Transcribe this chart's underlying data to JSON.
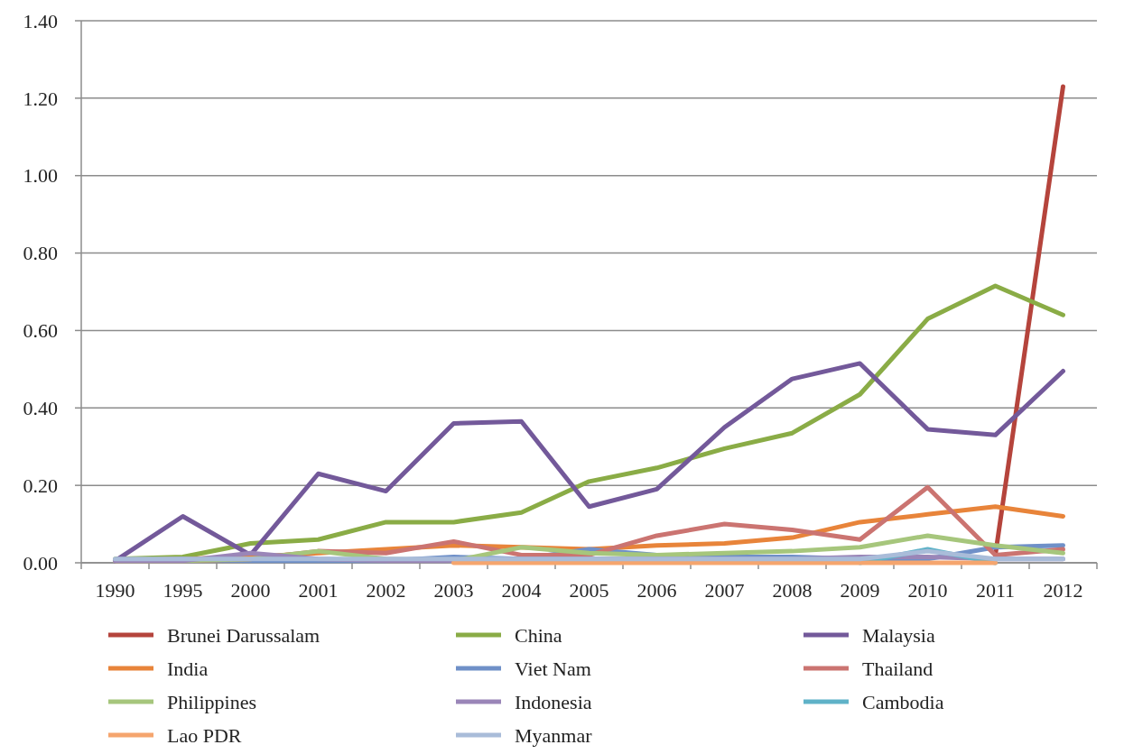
{
  "chart_data": {
    "type": "line",
    "categories": [
      "1990",
      "1995",
      "2000",
      "2001",
      "2002",
      "2003",
      "2004",
      "2005",
      "2006",
      "2007",
      "2008",
      "2009",
      "2010",
      "2011",
      "2012"
    ],
    "ylim": [
      0,
      1.4
    ],
    "yticks": [
      {
        "value": 0,
        "label": "0.00"
      },
      {
        "value": 0.2,
        "label": "0.20"
      },
      {
        "value": 0.4,
        "label": "0.40"
      },
      {
        "value": 0.6,
        "label": "0.60"
      },
      {
        "value": 0.8,
        "label": "0.80"
      },
      {
        "value": 1,
        "label": "1.00"
      },
      {
        "value": 1.2,
        "label": "1.20"
      },
      {
        "value": 1.4,
        "label": "1.40"
      }
    ],
    "grid": "y",
    "legend": "bottom",
    "marker": "none",
    "line_style": "solid",
    "series": [
      {
        "name": "Brunei Darussalam",
        "color": "#b5443c",
        "values": [
          null,
          null,
          null,
          null,
          null,
          null,
          null,
          null,
          null,
          null,
          null,
          null,
          null,
          0.02,
          1.23
        ]
      },
      {
        "name": "China",
        "color": "#8aac46",
        "values": [
          0.01,
          0.015,
          0.05,
          0.06,
          0.105,
          0.105,
          0.13,
          0.21,
          0.245,
          0.295,
          0.335,
          0.435,
          0.63,
          0.715,
          0.64
        ]
      },
      {
        "name": "Malaysia",
        "color": "#73599a",
        "values": [
          0.005,
          0.12,
          0.02,
          0.23,
          0.185,
          0.36,
          0.365,
          0.145,
          0.19,
          0.35,
          0.475,
          0.515,
          0.345,
          0.33,
          0.495
        ]
      },
      {
        "name": "India",
        "color": "#e8843a",
        "values": [
          0.005,
          0.01,
          0.015,
          0.025,
          0.035,
          0.045,
          0.04,
          0.035,
          0.045,
          0.05,
          0.065,
          0.105,
          0.125,
          0.145,
          0.12
        ]
      },
      {
        "name": "Viet Nam",
        "color": "#6f90c8",
        "values": [
          0.005,
          0.01,
          0.005,
          0.005,
          0.005,
          0.015,
          0.01,
          0.035,
          0.02,
          0.015,
          0.015,
          0.01,
          0.01,
          0.04,
          0.045
        ]
      },
      {
        "name": "Thailand",
        "color": "#cb7471",
        "values": [
          0.005,
          0.005,
          0.01,
          0.03,
          0.025,
          0.055,
          0.02,
          0.02,
          0.07,
          0.1,
          0.085,
          0.06,
          0.195,
          0.02,
          0.035
        ]
      },
      {
        "name": "Philippines",
        "color": "#a6c67c",
        "values": [
          0.005,
          0.005,
          0.01,
          0.03,
          0.01,
          0.005,
          0.04,
          0.025,
          0.02,
          0.025,
          0.03,
          0.04,
          0.07,
          0.045,
          0.025
        ]
      },
      {
        "name": "Indonesia",
        "color": "#9a86b8",
        "values": [
          0.005,
          0.005,
          0.025,
          0.01,
          0.005,
          0.005,
          0.01,
          0.01,
          0.01,
          0.01,
          0.01,
          0.015,
          0.015,
          0.01,
          0.01
        ]
      },
      {
        "name": "Cambodia",
        "color": "#5fb2c8",
        "values": [
          null,
          null,
          null,
          null,
          null,
          null,
          null,
          null,
          null,
          null,
          null,
          0,
          0.035,
          0,
          null
        ]
      },
      {
        "name": "Lao PDR",
        "color": "#f5a56e",
        "values": [
          null,
          null,
          null,
          null,
          null,
          0,
          0,
          0,
          0,
          0,
          0,
          0,
          0,
          0,
          null
        ]
      },
      {
        "name": "Myanmar",
        "color": "#a9bcd9",
        "values": [
          0.01,
          0.01,
          0.01,
          0.01,
          0.01,
          0.01,
          0.01,
          0.01,
          0.01,
          0.01,
          0.01,
          0.01,
          0.03,
          0.01,
          0.01
        ]
      }
    ]
  }
}
